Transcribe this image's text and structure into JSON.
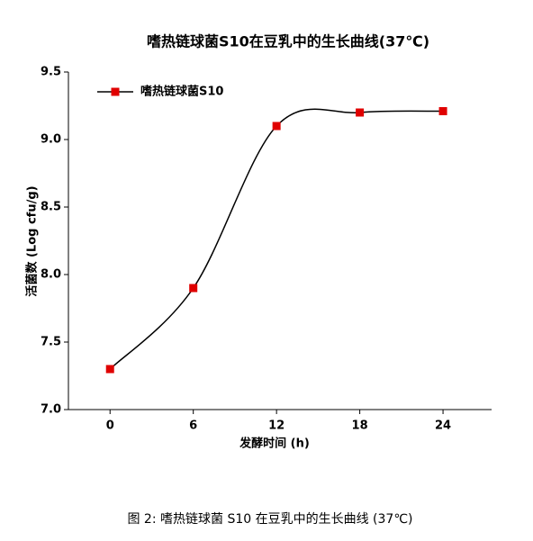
{
  "chart_data": {
    "type": "line",
    "title": "嗜热链球菌S10在豆乳中的生长曲线(37℃)",
    "caption": "图 2: 嗜热链球菌 S10 在豆乳中的生长曲线 (37℃)",
    "x_label": "发酵时间 (h)",
    "y_label": "活菌数 (Log cfu/g)",
    "x": [
      0,
      6,
      12,
      18,
      24
    ],
    "series": [
      {
        "name": "嗜热链球菌S10",
        "color": "#e00000",
        "values": [
          7.3,
          7.9,
          9.1,
          9.2,
          9.21
        ]
      }
    ],
    "xlim": [
      -3,
      27.5
    ],
    "xticks": [
      0,
      6,
      12,
      18,
      24
    ],
    "ylim": [
      7.0,
      9.5
    ],
    "yticks": [
      {
        "value": 7.0,
        "label": "7.0"
      },
      {
        "value": 7.5,
        "label": "7.5"
      },
      {
        "value": 8.0,
        "label": "8.0"
      },
      {
        "value": 8.5,
        "label": "8.5"
      },
      {
        "value": 9.0,
        "label": "9.0"
      },
      {
        "value": 9.5,
        "label": "9.5"
      }
    ],
    "legend": "upper left",
    "smooth": true
  }
}
